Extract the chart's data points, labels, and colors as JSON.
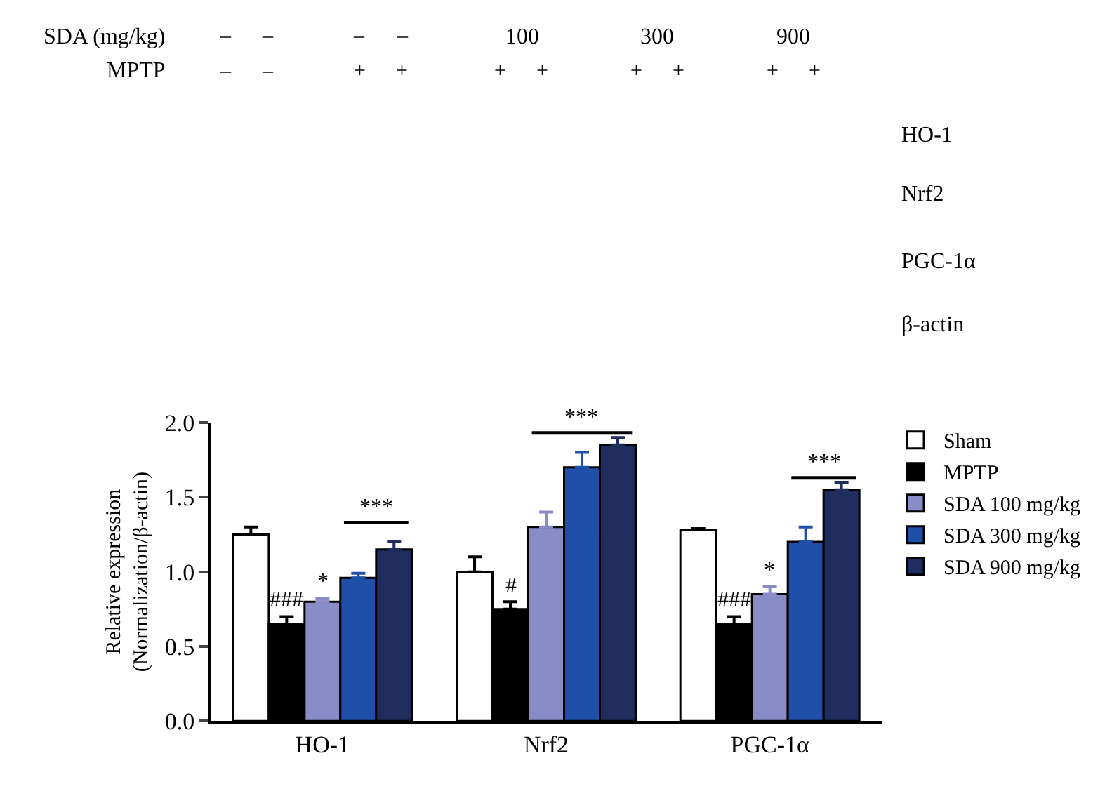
{
  "chart_data": {
    "type": "bar",
    "ylabel": "Relative expression\n(Normalization/β-actin)",
    "categories": [
      "HO-1",
      "Nrf2",
      "PGC-1α"
    ],
    "series": [
      {
        "name": "Sham",
        "color": "#ffffff",
        "values": [
          1.25,
          1.0,
          1.28
        ],
        "errors": [
          [
            1.25,
            1.3
          ],
          [
            1.0,
            1.1
          ],
          [
            1.28,
            1.29
          ]
        ]
      },
      {
        "name": "MPTP",
        "color": "#000000",
        "values": [
          0.65,
          0.75,
          0.65
        ],
        "errors": [
          [
            0.65,
            0.7
          ],
          [
            0.75,
            0.8
          ],
          [
            0.65,
            0.7
          ]
        ]
      },
      {
        "name": "SDA 100 mg/kg",
        "color": "#8a8cc8",
        "values": [
          0.8,
          1.3,
          0.85
        ],
        "errors": [
          [
            0.8,
            0.82
          ],
          [
            1.3,
            1.4
          ],
          [
            0.85,
            0.9
          ]
        ]
      },
      {
        "name": "SDA 300 mg/kg",
        "color": "#1f4fa8",
        "values": [
          0.96,
          1.7,
          1.2
        ],
        "errors": [
          [
            0.96,
            0.99
          ],
          [
            1.7,
            1.8
          ],
          [
            1.2,
            1.3
          ]
        ]
      },
      {
        "name": "SDA 900 mg/kg",
        "color": "#1f2d5e",
        "values": [
          1.15,
          1.85,
          1.55
        ],
        "errors": [
          [
            1.15,
            1.2
          ],
          [
            1.85,
            1.9
          ],
          [
            1.55,
            1.6
          ]
        ]
      }
    ],
    "ylim": [
      0,
      2.0
    ],
    "yticks": [
      {
        "value": 0,
        "label": "0.0"
      },
      {
        "value": 0.5,
        "label": "0.5"
      },
      {
        "value": 1.0,
        "label": "1.0"
      },
      {
        "value": 1.5,
        "label": "1.5"
      },
      {
        "value": 2.0,
        "label": "2.0"
      }
    ],
    "legend": "right",
    "annotations": [
      "###",
      "*",
      "***",
      "#",
      "***",
      "###",
      "*",
      "***",
      "SDA (mg/kg)",
      "–",
      "–",
      "–",
      "–",
      "100",
      "300",
      "900",
      "MPTP",
      "–",
      "–",
      "+",
      "+",
      "+",
      "+",
      "+",
      "+",
      "+",
      "+",
      "HO-1",
      "Nrf2",
      "PGC-1α",
      "β-actin"
    ]
  }
}
